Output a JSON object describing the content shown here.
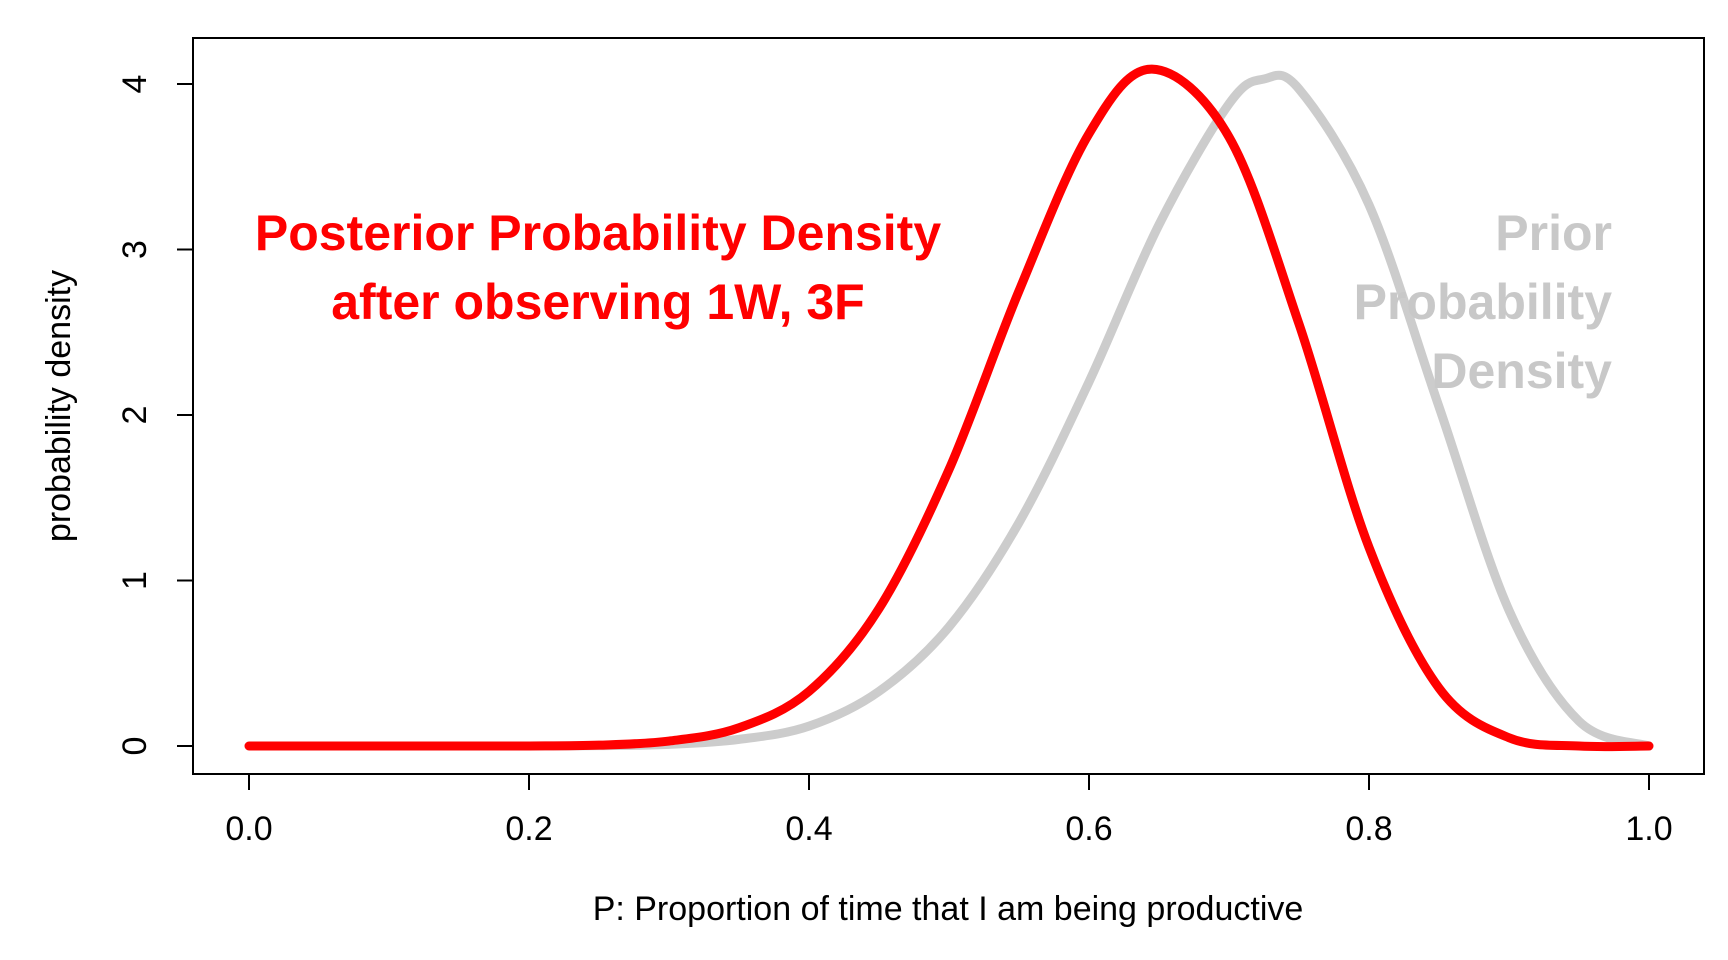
{
  "chart_data": {
    "type": "line",
    "title": "",
    "xlabel": "P: Proportion of time that I am being productive",
    "ylabel": "probability density",
    "xlim": [
      0.0,
      1.0
    ],
    "ylim": [
      0,
      4
    ],
    "x_ticks": [
      "0.0",
      "0.2",
      "0.4",
      "0.6",
      "0.8",
      "1.0"
    ],
    "y_ticks": [
      "0",
      "1",
      "2",
      "3",
      "4"
    ],
    "grid": false,
    "series": [
      {
        "key": "prior",
        "color": "#cccccc",
        "x": [
          0.0,
          0.05,
          0.1,
          0.15,
          0.2,
          0.25,
          0.3,
          0.35,
          0.4,
          0.45,
          0.5,
          0.55,
          0.6,
          0.65,
          0.7,
          0.725,
          0.75,
          0.8,
          0.85,
          0.9,
          0.95,
          1.0
        ],
        "y": [
          0.0,
          0.0,
          0.0,
          0.0,
          0.0,
          0.002,
          0.01,
          0.04,
          0.12,
          0.33,
          0.72,
          1.35,
          2.2,
          3.15,
          3.88,
          4.03,
          3.97,
          3.27,
          2.05,
          0.82,
          0.15,
          0.0
        ]
      },
      {
        "key": "posterior",
        "color": "#ff0000",
        "x": [
          0.0,
          0.05,
          0.1,
          0.15,
          0.2,
          0.25,
          0.3,
          0.35,
          0.4,
          0.45,
          0.5,
          0.55,
          0.6,
          0.645,
          0.7,
          0.75,
          0.8,
          0.85,
          0.9,
          0.95,
          1.0
        ],
        "y": [
          0.0,
          0.0,
          0.0,
          0.0,
          0.0,
          0.005,
          0.03,
          0.11,
          0.33,
          0.83,
          1.67,
          2.75,
          3.7,
          4.09,
          3.68,
          2.55,
          1.2,
          0.35,
          0.05,
          0.0,
          0.0
        ]
      }
    ],
    "annotations": [
      {
        "key": "posterior",
        "lines": [
          "Posterior Probability Density",
          "after observing 1W, 3F"
        ],
        "color": "#ff0000"
      },
      {
        "key": "prior",
        "lines": [
          "Prior",
          "Probability",
          "Density"
        ],
        "color": "#c8c8c8"
      }
    ]
  }
}
